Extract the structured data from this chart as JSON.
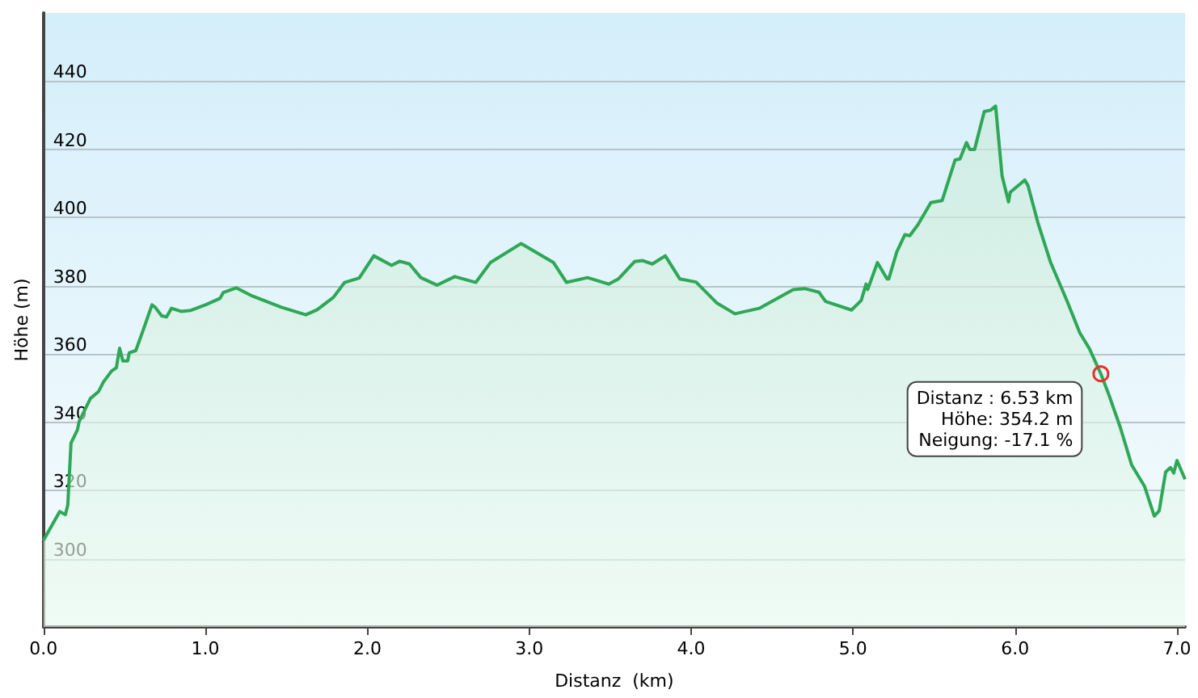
{
  "chart_data": {
    "type": "area",
    "xlabel": "Distanz  (km)",
    "ylabel": "Höhe (m)",
    "xlim": [
      0,
      7.05
    ],
    "ylim": [
      280,
      460
    ],
    "xticks": [
      {
        "value": 0,
        "label": "0.0"
      },
      {
        "value": 1,
        "label": "1.0"
      },
      {
        "value": 2,
        "label": "2.0"
      },
      {
        "value": 3,
        "label": "3.0"
      },
      {
        "value": 4,
        "label": "4.0"
      },
      {
        "value": 5,
        "label": "5.0"
      },
      {
        "value": 6,
        "label": "6.0"
      },
      {
        "value": 7,
        "label": "7.0"
      }
    ],
    "yticks": [
      300,
      320,
      340,
      360,
      380,
      400,
      420,
      440
    ],
    "grid": "y",
    "marker": "none",
    "line_style": "solid",
    "annotations": [
      {
        "text": "Distanz : 6.53 km\nHöhe: 354.2 m\nNeigung: -17.1 %",
        "x": 6.53,
        "y": 354.2
      }
    ],
    "series": [
      {
        "color": "#2ea757",
        "x": [
          0,
          0.1,
          0.135,
          0.15,
          0.17,
          0.21,
          0.22,
          0.29,
          0.34,
          0.37,
          0.42,
          0.45,
          0.47,
          0.49,
          0.52,
          0.53,
          0.57,
          0.62,
          0.67,
          0.69,
          0.73,
          0.76,
          0.79,
          0.85,
          0.91,
          1.0,
          1.09,
          1.11,
          1.19,
          1.29,
          1.47,
          1.62,
          1.69,
          1.79,
          1.86,
          1.95,
          2.04,
          2.15,
          2.2,
          2.26,
          2.33,
          2.43,
          2.54,
          2.67,
          2.76,
          2.95,
          3.15,
          3.23,
          3.36,
          3.49,
          3.55,
          3.65,
          3.7,
          3.76,
          3.84,
          3.93,
          4.03,
          4.16,
          4.27,
          4.42,
          4.63,
          4.7,
          4.79,
          4.83,
          4.99,
          5.05,
          5.08,
          5.09,
          5.15,
          5.21,
          5.22,
          5.27,
          5.32,
          5.35,
          5.4,
          5.48,
          5.55,
          5.63,
          5.66,
          5.7,
          5.72,
          5.75,
          5.81,
          5.85,
          5.88,
          5.92,
          5.96,
          5.97,
          6.03,
          6.06,
          6.08,
          6.14,
          6.22,
          6.32,
          6.4,
          6.46,
          6.53,
          6.58,
          6.65,
          6.72,
          6.8,
          6.86,
          6.89,
          6.93,
          6.96,
          6.98,
          7.0,
          7.05
        ],
        "values": [
          305.4,
          313.8,
          312.9,
          315.7,
          333.9,
          337.8,
          340.2,
          347,
          349,
          351.8,
          355,
          356,
          361.7,
          358,
          358,
          360.4,
          361,
          367.6,
          374.4,
          373.7,
          371.2,
          370.9,
          373.4,
          372.5,
          372.8,
          374.4,
          376.3,
          378,
          379.4,
          377,
          373.7,
          371.5,
          373,
          376.6,
          381,
          382.3,
          388.8,
          386,
          387.2,
          386.4,
          382.4,
          380.2,
          382.7,
          381,
          386.8,
          392.4,
          386.8,
          381,
          382.4,
          380.5,
          382,
          387.1,
          387.4,
          386.4,
          388.8,
          382,
          381.1,
          374.9,
          371.8,
          373.4,
          378.9,
          379.2,
          378.1,
          375.4,
          372.9,
          375.7,
          380.5,
          378.9,
          386.8,
          382,
          382,
          390,
          395,
          394.7,
          397.9,
          404.4,
          405,
          416.9,
          417.2,
          422,
          420,
          420,
          431.1,
          431.5,
          432.7,
          412.2,
          404.6,
          407.4,
          409.8,
          411,
          409.4,
          398.7,
          386.8,
          375.7,
          366.2,
          361.5,
          354.2,
          348,
          338.5,
          327.5,
          321.2,
          312.5,
          314,
          325.4,
          326.7,
          325.1,
          328.8,
          323.3
        ]
      }
    ]
  }
}
